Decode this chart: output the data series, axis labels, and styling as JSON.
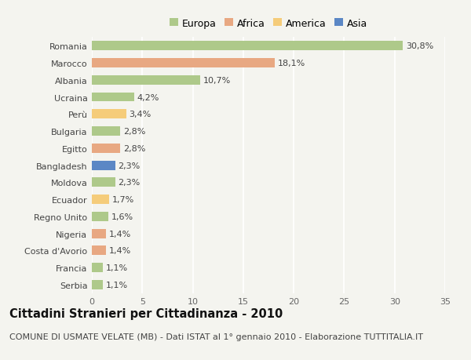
{
  "countries": [
    "Romania",
    "Marocco",
    "Albania",
    "Ucraina",
    "Perù",
    "Bulgaria",
    "Egitto",
    "Bangladesh",
    "Moldova",
    "Ecuador",
    "Regno Unito",
    "Nigeria",
    "Costa d'Avorio",
    "Francia",
    "Serbia"
  ],
  "values": [
    30.8,
    18.1,
    10.7,
    4.2,
    3.4,
    2.8,
    2.8,
    2.3,
    2.3,
    1.7,
    1.6,
    1.4,
    1.4,
    1.1,
    1.1
  ],
  "labels": [
    "30,8%",
    "18,1%",
    "10,7%",
    "4,2%",
    "3,4%",
    "2,8%",
    "2,8%",
    "2,3%",
    "2,3%",
    "1,7%",
    "1,6%",
    "1,4%",
    "1,4%",
    "1,1%",
    "1,1%"
  ],
  "colors": [
    "#aec98a",
    "#e8a882",
    "#aec98a",
    "#aec98a",
    "#f5cc7a",
    "#aec98a",
    "#e8a882",
    "#5b87c5",
    "#aec98a",
    "#f5cc7a",
    "#aec98a",
    "#e8a882",
    "#e8a882",
    "#aec98a",
    "#aec98a"
  ],
  "legend": [
    {
      "label": "Europa",
      "color": "#aec98a"
    },
    {
      "label": "Africa",
      "color": "#e8a882"
    },
    {
      "label": "America",
      "color": "#f5cc7a"
    },
    {
      "label": "Asia",
      "color": "#5b87c5"
    }
  ],
  "xlim": [
    0,
    35
  ],
  "xticks": [
    0,
    5,
    10,
    15,
    20,
    25,
    30,
    35
  ],
  "title": "Cittadini Stranieri per Cittadinanza - 2010",
  "subtitle": "COMUNE DI USMATE VELATE (MB) - Dati ISTAT al 1° gennaio 2010 - Elaborazione TUTTITALIA.IT",
  "background_color": "#f4f4ef",
  "bar_height": 0.55,
  "label_fontsize": 8,
  "tick_fontsize": 8,
  "title_fontsize": 10.5,
  "subtitle_fontsize": 8,
  "legend_fontsize": 9,
  "grid_color": "#ffffff",
  "axes_bg_color": "#f4f4ef"
}
